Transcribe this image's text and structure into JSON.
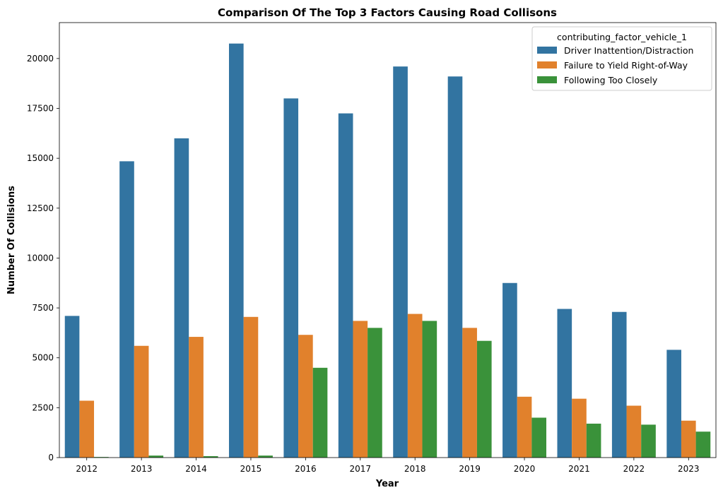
{
  "chart_data": {
    "type": "bar",
    "title": "Comparison Of The Top 3 Factors Causing Road Collisons",
    "xlabel": "Year",
    "ylabel": "Number Of Collisions",
    "categories": [
      "2012",
      "2013",
      "2014",
      "2015",
      "2016",
      "2017",
      "2018",
      "2019",
      "2020",
      "2021",
      "2022",
      "2023"
    ],
    "ylim": [
      0,
      21800
    ],
    "yticks": [
      0,
      2500,
      5000,
      7500,
      10000,
      12500,
      15000,
      17500,
      20000
    ],
    "legend": {
      "title": "contributing_factor_vehicle_1",
      "position": "top-right"
    },
    "series": [
      {
        "name": "Driver Inattention/Distraction",
        "color": "#3274a1",
        "values": [
          7100,
          14850,
          16000,
          20750,
          18000,
          17250,
          19600,
          19100,
          8750,
          7450,
          7300,
          5400
        ]
      },
      {
        "name": "Failure to Yield Right-of-Way",
        "color": "#e1812c",
        "values": [
          2850,
          5600,
          6050,
          7050,
          6150,
          6850,
          7200,
          6500,
          3050,
          2950,
          2600,
          1850
        ]
      },
      {
        "name": "Following Too Closely",
        "color": "#3a923a",
        "values": [
          30,
          100,
          70,
          100,
          4500,
          6500,
          6850,
          5850,
          2000,
          1700,
          1650,
          1300
        ]
      }
    ],
    "grid": false
  }
}
